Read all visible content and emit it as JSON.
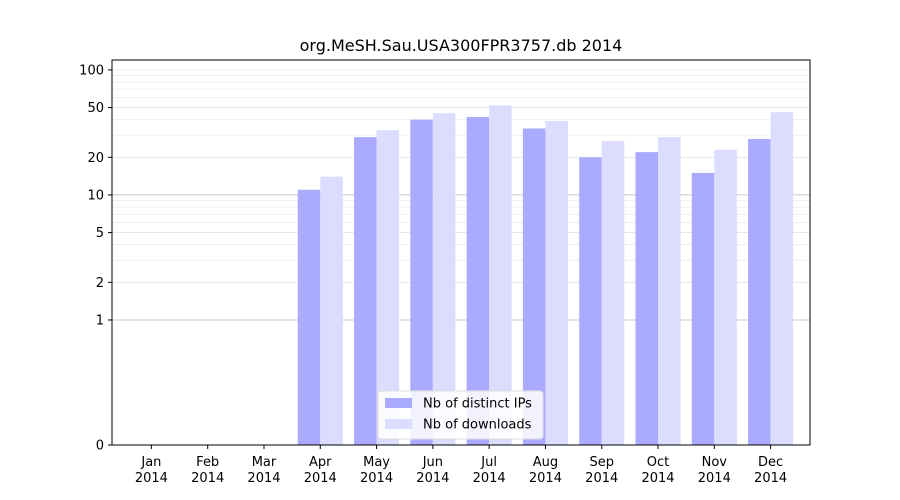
{
  "chart_data": {
    "type": "bar",
    "title": "org.MeSH.Sau.USA300FPR3757.db 2014",
    "xlabel": "",
    "ylabel": "",
    "categories": [
      [
        "Jan",
        "2014"
      ],
      [
        "Feb",
        "2014"
      ],
      [
        "Mar",
        "2014"
      ],
      [
        "Apr",
        "2014"
      ],
      [
        "May",
        "2014"
      ],
      [
        "Jun",
        "2014"
      ],
      [
        "Jul",
        "2014"
      ],
      [
        "Aug",
        "2014"
      ],
      [
        "Sep",
        "2014"
      ],
      [
        "Oct",
        "2014"
      ],
      [
        "Nov",
        "2014"
      ],
      [
        "Dec",
        "2014"
      ]
    ],
    "series": [
      {
        "name": "Nb of distinct IPs",
        "color": "#aaaaff",
        "values": [
          0,
          0,
          0,
          11,
          29,
          40,
          42,
          34,
          20,
          22,
          15,
          28
        ]
      },
      {
        "name": "Nb of downloads",
        "color": "#dcdcff",
        "values": [
          0,
          0,
          0,
          14,
          33,
          45,
          52,
          39,
          27,
          29,
          23,
          46
        ]
      }
    ],
    "y_scale": "symlog",
    "ylim": [
      0,
      120
    ],
    "y_ticks": [
      0,
      1,
      2,
      5,
      10,
      20,
      50,
      100
    ],
    "grid": "horizontal",
    "legend_position": "bottom-center"
  }
}
